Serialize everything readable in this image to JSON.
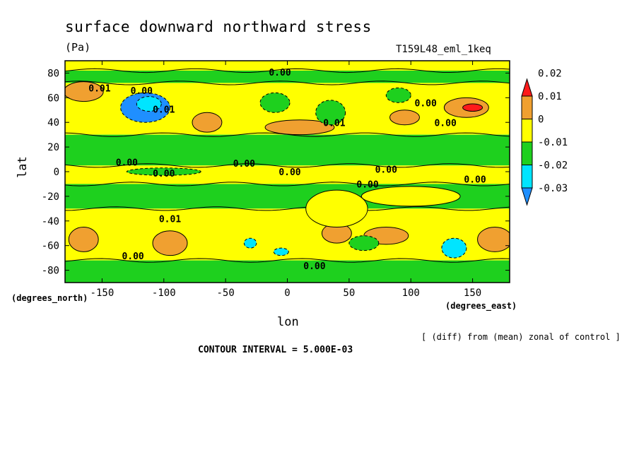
{
  "title": "surface downward northward stress",
  "units": "(Pa)",
  "run_label": "T159L48_eml_1keq",
  "y_axis_label": "lat",
  "x_axis_label": "lon",
  "y_units_label": "(degrees_north)",
  "x_units_label": "(degrees_east)",
  "note": "[ (diff) from (mean) zonal of control ]",
  "contour_interval": "CONTOUR INTERVAL = 5.000E-03",
  "chart_data": {
    "type": "heatmap",
    "title": "surface downward northward stress",
    "xlabel": "lon",
    "ylabel": "lat",
    "xlim": [
      -180,
      180
    ],
    "ylim": [
      -90,
      90
    ],
    "x_ticks": [
      -150,
      -100,
      -50,
      0,
      50,
      100,
      150
    ],
    "x_tick_labels": [
      "-150",
      "-100",
      "-50",
      "0",
      "50",
      "100",
      "150"
    ],
    "y_ticks": [
      80,
      60,
      40,
      20,
      0,
      -20,
      -40,
      -60,
      -80
    ],
    "y_tick_labels": [
      "80",
      "60",
      "40",
      "20",
      "0",
      "-20",
      "-40",
      "-60",
      "-80"
    ],
    "colorbar": {
      "levels": [
        -0.03,
        -0.02,
        -0.01,
        0,
        0.01,
        0.02
      ],
      "labels": [
        "-0.03",
        "-0.02",
        "-0.01",
        "0",
        "0.01",
        "0.02"
      ],
      "colors": [
        "#1f8fff",
        "#00e5ff",
        "#1ed01e",
        "#ffff00",
        "#f0a030",
        "#ff1a1a"
      ]
    },
    "bands": [
      {
        "lat": [
          82,
          90
        ],
        "value": 0.005
      },
      {
        "lat": [
          72,
          82
        ],
        "value": -0.005
      },
      {
        "lat": [
          30,
          72
        ],
        "value": 0.005
      },
      {
        "lat": [
          5,
          30
        ],
        "value": -0.005
      },
      {
        "lat": [
          -10,
          5
        ],
        "value": 0.005
      },
      {
        "lat": [
          -30,
          -10
        ],
        "value": -0.005
      },
      {
        "lat": [
          -72,
          -30
        ],
        "value": 0.005
      },
      {
        "lat": [
          -90,
          -72
        ],
        "value": -0.005
      }
    ],
    "features": [
      {
        "lon": -115,
        "lat": 52,
        "rlon": 20,
        "rlat": 12,
        "value": -0.025
      },
      {
        "lon": -112,
        "lat": 55,
        "rlon": 10,
        "rlat": 6,
        "value": -0.015
      },
      {
        "lon": -165,
        "lat": 65,
        "rlon": 16,
        "rlat": 8,
        "value": 0.015
      },
      {
        "lon": -65,
        "lat": 40,
        "rlon": 12,
        "rlat": 8,
        "value": 0.015
      },
      {
        "lon": 10,
        "lat": 36,
        "rlon": 28,
        "rlat": 6,
        "value": 0.015
      },
      {
        "lon": 95,
        "lat": 44,
        "rlon": 12,
        "rlat": 6,
        "value": 0.015
      },
      {
        "lon": 145,
        "lat": 52,
        "rlon": 18,
        "rlat": 8,
        "value": 0.015
      },
      {
        "lon": 150,
        "lat": 52,
        "rlon": 8,
        "rlat": 3,
        "value": 0.025
      },
      {
        "lon": -95,
        "lat": -58,
        "rlon": 14,
        "rlat": 10,
        "value": 0.015
      },
      {
        "lon": -165,
        "lat": -55,
        "rlon": 12,
        "rlat": 10,
        "value": 0.015
      },
      {
        "lon": 40,
        "lat": -50,
        "rlon": 12,
        "rlat": 8,
        "value": 0.015
      },
      {
        "lon": 80,
        "lat": -52,
        "rlon": 18,
        "rlat": 7,
        "value": 0.015
      },
      {
        "lon": 168,
        "lat": -55,
        "rlon": 14,
        "rlat": 10,
        "value": 0.015
      },
      {
        "lon": 62,
        "lat": -58,
        "rlon": 12,
        "rlat": 6,
        "value": -0.005
      },
      {
        "lon": 135,
        "lat": -62,
        "rlon": 10,
        "rlat": 8,
        "value": -0.015
      },
      {
        "lon": -30,
        "lat": -58,
        "rlon": 5,
        "rlat": 4,
        "value": -0.015
      },
      {
        "lon": -5,
        "lat": -65,
        "rlon": 6,
        "rlat": 3,
        "value": -0.015
      },
      {
        "lon": 35,
        "lat": 48,
        "rlon": 12,
        "rlat": 10,
        "value": -0.005
      },
      {
        "lon": -10,
        "lat": 56,
        "rlon": 12,
        "rlat": 8,
        "value": -0.005
      },
      {
        "lon": 90,
        "lat": 62,
        "rlon": 10,
        "rlat": 6,
        "value": -0.005
      },
      {
        "lon": -100,
        "lat": 0,
        "rlon": 30,
        "rlat": 3,
        "value": -0.005
      },
      {
        "lon": 100,
        "lat": -20,
        "rlon": 40,
        "rlat": 8,
        "value": 0.005
      },
      {
        "lon": 40,
        "lat": -30,
        "rlon": 25,
        "rlat": 15,
        "value": 0.005
      }
    ],
    "contour_labels": [
      {
        "lon": -152,
        "lat": 65,
        "text": "0.01"
      },
      {
        "lon": -118,
        "lat": 63,
        "text": "0.00"
      },
      {
        "lon": -100,
        "lat": 48,
        "text": "0.01"
      },
      {
        "lon": -6,
        "lat": 78,
        "text": "0.00"
      },
      {
        "lon": 112,
        "lat": 53,
        "text": "0.00"
      },
      {
        "lon": 128,
        "lat": 37,
        "text": "0.00"
      },
      {
        "lon": 38,
        "lat": 37,
        "text": "0.01"
      },
      {
        "lon": -130,
        "lat": 5,
        "text": "0.00"
      },
      {
        "lon": -35,
        "lat": 4,
        "text": "0.00"
      },
      {
        "lon": 2,
        "lat": -3,
        "text": "0.00"
      },
      {
        "lon": 80,
        "lat": -1,
        "text": "0.00"
      },
      {
        "lon": 152,
        "lat": -9,
        "text": "0.00"
      },
      {
        "lon": -100,
        "lat": -4,
        "text": "0.00"
      },
      {
        "lon": 65,
        "lat": -13,
        "text": "0.00"
      },
      {
        "lon": -95,
        "lat": -41,
        "text": "0.01"
      },
      {
        "lon": -125,
        "lat": -71,
        "text": "0.00"
      },
      {
        "lon": 22,
        "lat": -79,
        "text": "0.00"
      }
    ]
  }
}
